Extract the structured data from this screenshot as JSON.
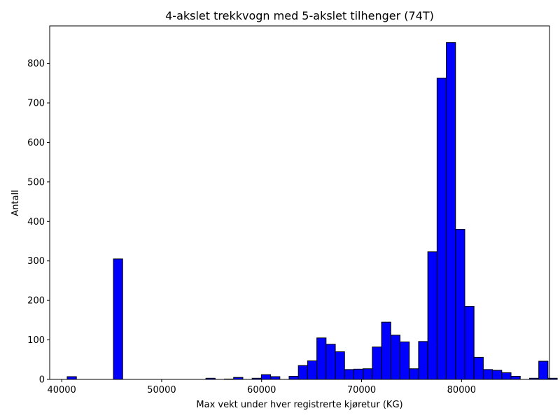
{
  "chart_data": {
    "type": "bar",
    "title": "4-akslet trekkvogn med 5-akslet tilhenger (74T)",
    "xlabel": "Max vekt under hver registrerte kjøretur (KG)",
    "ylabel": "Antall",
    "xlim": [
      38800,
      88800
    ],
    "ylim": [
      0,
      895
    ],
    "bin_start": 40550,
    "bin_width": 925,
    "counts": [
      7,
      0,
      0,
      0,
      0,
      305,
      0,
      0,
      0,
      0,
      0,
      0,
      0,
      0,
      0,
      3,
      0,
      1,
      5,
      0,
      3,
      12,
      7,
      0,
      8,
      35,
      47,
      105,
      89,
      70,
      25,
      26,
      27,
      82,
      145,
      112,
      95,
      27,
      96,
      323,
      763,
      853,
      380,
      185,
      56,
      25,
      23,
      17,
      8,
      0,
      3,
      46,
      3
    ],
    "x_ticks": [
      40000,
      50000,
      60000,
      70000,
      80000
    ],
    "x_tick_labels": [
      "40000",
      "50000",
      "60000",
      "70000",
      "80000"
    ],
    "y_ticks": [
      0,
      100,
      200,
      300,
      400,
      500,
      600,
      700,
      800
    ],
    "y_tick_labels": [
      "0",
      "100",
      "200",
      "300",
      "400",
      "500",
      "600",
      "700",
      "800"
    ],
    "bar_color": "#0000ff",
    "edge_color": "#000000"
  }
}
